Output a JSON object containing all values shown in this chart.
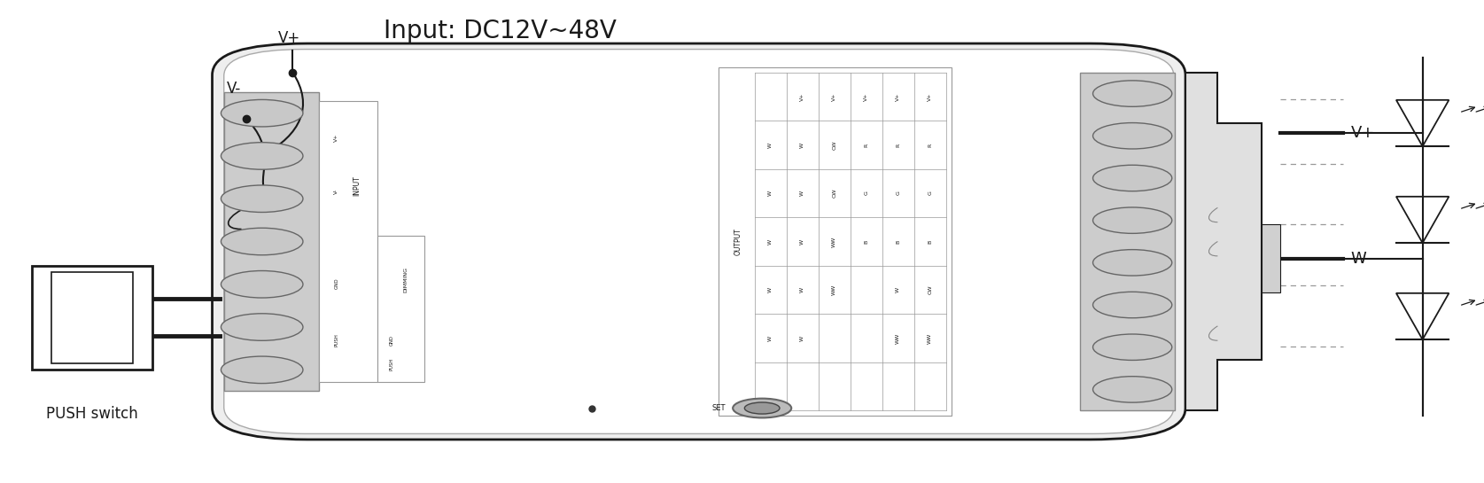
{
  "bg_color": "#ffffff",
  "lc": "#1a1a1a",
  "title": "Input: DC12V~48V",
  "vplus_label": "V+",
  "vminus_label": "V-",
  "push_switch_text": "PUSH switch",
  "vplus_right": "V+",
  "w_right": "W",
  "set_text": "SET",
  "input_sublabels_top": [
    "V+",
    "V-"
  ],
  "input_sublabels_bottom": [
    "GND",
    "PUSH"
  ],
  "dimming_label": "DIMMING",
  "output_header": [
    "V+",
    "V+",
    "V+",
    "V+",
    "V+"
  ],
  "out_col1": [
    "W",
    "W",
    "W",
    "W",
    "W"
  ],
  "out_col2": [
    "CW",
    "CW",
    "WW",
    "WW",
    ""
  ],
  "out_col3": [
    "R",
    "G",
    "B",
    "",
    ""
  ],
  "out_col4": [
    "R",
    "G",
    "B",
    "W",
    "WW"
  ],
  "out_col5": [
    "R",
    "G",
    "B",
    "CW",
    "WW"
  ]
}
